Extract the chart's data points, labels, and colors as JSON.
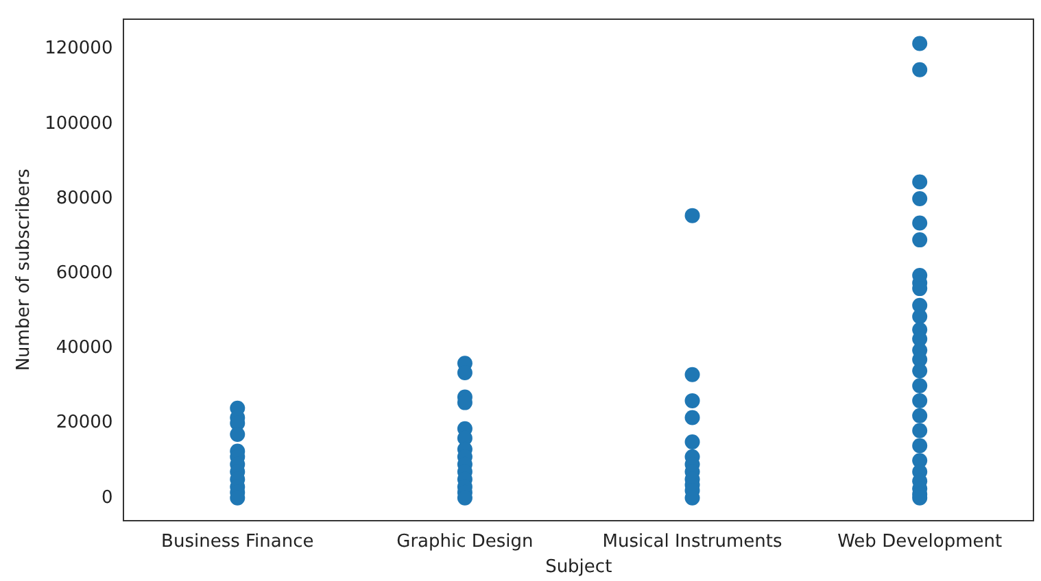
{
  "chart_data": {
    "type": "scatter",
    "xlabel": "Subject",
    "ylabel": "Number of subscribers",
    "categories": [
      "Business Finance",
      "Graphic Design",
      "Musical Instruments",
      "Web Development"
    ],
    "series": [
      {
        "color": "#1f77b4",
        "x": [
          "Business Finance",
          "Business Finance",
          "Business Finance",
          "Business Finance",
          "Business Finance",
          "Business Finance",
          "Business Finance",
          "Business Finance",
          "Business Finance",
          "Business Finance",
          "Business Finance",
          "Business Finance",
          "Graphic Design",
          "Graphic Design",
          "Graphic Design",
          "Graphic Design",
          "Graphic Design",
          "Graphic Design",
          "Graphic Design",
          "Graphic Design",
          "Graphic Design",
          "Graphic Design",
          "Graphic Design",
          "Graphic Design",
          "Graphic Design",
          "Graphic Design",
          "Musical Instruments",
          "Musical Instruments",
          "Musical Instruments",
          "Musical Instruments",
          "Musical Instruments",
          "Musical Instruments",
          "Musical Instruments",
          "Musical Instruments",
          "Musical Instruments",
          "Musical Instruments",
          "Musical Instruments",
          "Musical Instruments",
          "Web Development",
          "Web Development",
          "Web Development",
          "Web Development",
          "Web Development",
          "Web Development",
          "Web Development",
          "Web Development",
          "Web Development",
          "Web Development",
          "Web Development",
          "Web Development",
          "Web Development",
          "Web Development",
          "Web Development",
          "Web Development",
          "Web Development",
          "Web Development",
          "Web Development",
          "Web Development",
          "Web Development",
          "Web Development",
          "Web Development",
          "Web Development",
          "Web Development",
          "Web Development",
          "Web Development"
        ],
        "values": [
          24000,
          21500,
          20000,
          17000,
          12500,
          11000,
          9000,
          7000,
          5000,
          3000,
          1500,
          0,
          36000,
          33500,
          27000,
          25500,
          18500,
          16000,
          13000,
          11000,
          9000,
          7000,
          5000,
          3000,
          1500,
          0,
          75500,
          33000,
          26000,
          21500,
          15000,
          11000,
          9000,
          7000,
          5000,
          3500,
          2000,
          0,
          121500,
          114500,
          84500,
          80000,
          73500,
          69000,
          59500,
          57500,
          56000,
          51500,
          48500,
          45000,
          42500,
          39500,
          37000,
          34000,
          30000,
          26000,
          22000,
          18000,
          14000,
          10000,
          7000,
          4500,
          2500,
          1000,
          0
        ]
      }
    ],
    "ylim": [
      -6000,
      128000
    ],
    "yticks": [
      0,
      20000,
      40000,
      60000,
      80000,
      100000,
      120000
    ],
    "grid": false,
    "legend": false,
    "marker": "circle"
  }
}
